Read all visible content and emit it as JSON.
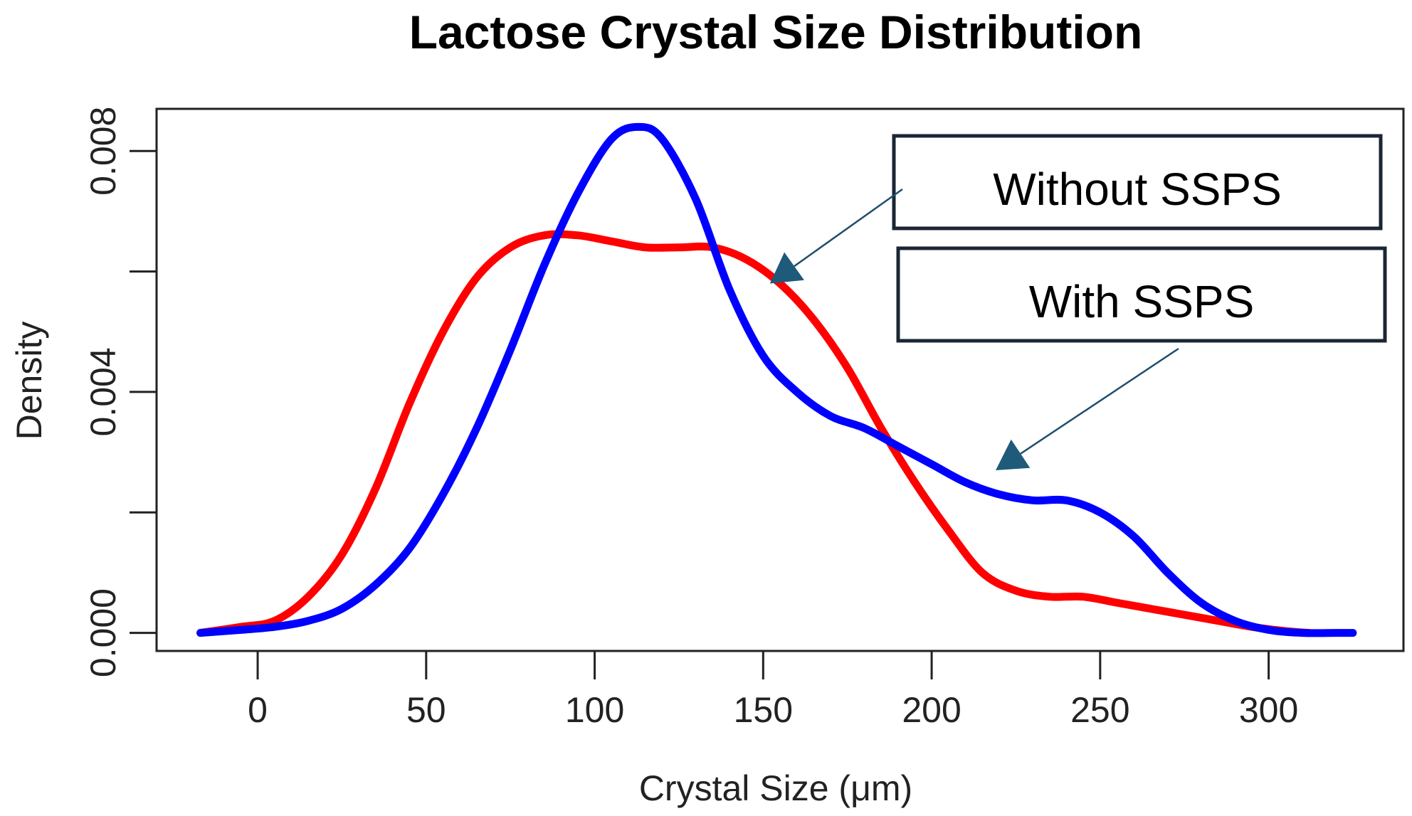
{
  "chart_data": {
    "type": "line",
    "title": "Lactose Crystal Size Distribution",
    "xlabel": "Crystal Size (μm)",
    "ylabel": "Density",
    "xlim": [
      -30,
      340
    ],
    "ylim": [
      -0.0003,
      0.0087
    ],
    "xticks": [
      0,
      50,
      100,
      150,
      200,
      250,
      300
    ],
    "yticks": [
      0.0,
      0.004,
      0.008
    ],
    "ytick_labels": [
      "0.000",
      "0.004",
      "0.008"
    ],
    "yticks_unlabeled": [
      0.002,
      0.006
    ],
    "grid": false,
    "series": [
      {
        "color": "#ff0000",
        "x": [
          -17,
          -5,
          5,
          15,
          25,
          35,
          45,
          55,
          65,
          75,
          85,
          95,
          105,
          115,
          125,
          135,
          145,
          155,
          165,
          175,
          185,
          195,
          205,
          215,
          225,
          235,
          245,
          255,
          265,
          275,
          285,
          295,
          305,
          312
        ],
        "y": [
          0.0,
          0.0001,
          0.0002,
          0.0006,
          0.0013,
          0.0024,
          0.0038,
          0.005,
          0.0059,
          0.0064,
          0.0066,
          0.0066,
          0.0065,
          0.0064,
          0.0064,
          0.0064,
          0.0062,
          0.0058,
          0.0052,
          0.0044,
          0.0034,
          0.0025,
          0.0017,
          0.001,
          0.0007,
          0.0006,
          0.0006,
          0.0005,
          0.0004,
          0.0003,
          0.0002,
          0.0001,
          3e-05,
          0.0
        ]
      },
      {
        "color": "#0000ff",
        "x": [
          -17,
          -5,
          5,
          15,
          25,
          35,
          45,
          55,
          65,
          75,
          85,
          95,
          105,
          113,
          120,
          130,
          140,
          150,
          160,
          170,
          180,
          190,
          200,
          210,
          220,
          230,
          240,
          250,
          260,
          270,
          280,
          290,
          300,
          310,
          320,
          325
        ],
        "y": [
          0.0,
          5e-05,
          0.0001,
          0.0002,
          0.0004,
          0.0008,
          0.0014,
          0.0023,
          0.0034,
          0.0047,
          0.0061,
          0.0073,
          0.0082,
          0.0084,
          0.0082,
          0.0072,
          0.0057,
          0.0046,
          0.004,
          0.0036,
          0.0034,
          0.0031,
          0.0028,
          0.0025,
          0.0023,
          0.0022,
          0.0022,
          0.002,
          0.0016,
          0.001,
          0.0005,
          0.0002,
          5e-05,
          0.0,
          0.0,
          0.0
        ]
      }
    ],
    "annotations": [
      {
        "text": "Without SSPS",
        "arrow_to": [
          152,
          0.0058
        ]
      },
      {
        "text": "With SSPS",
        "arrow_to": [
          219,
          0.0027
        ]
      }
    ]
  }
}
